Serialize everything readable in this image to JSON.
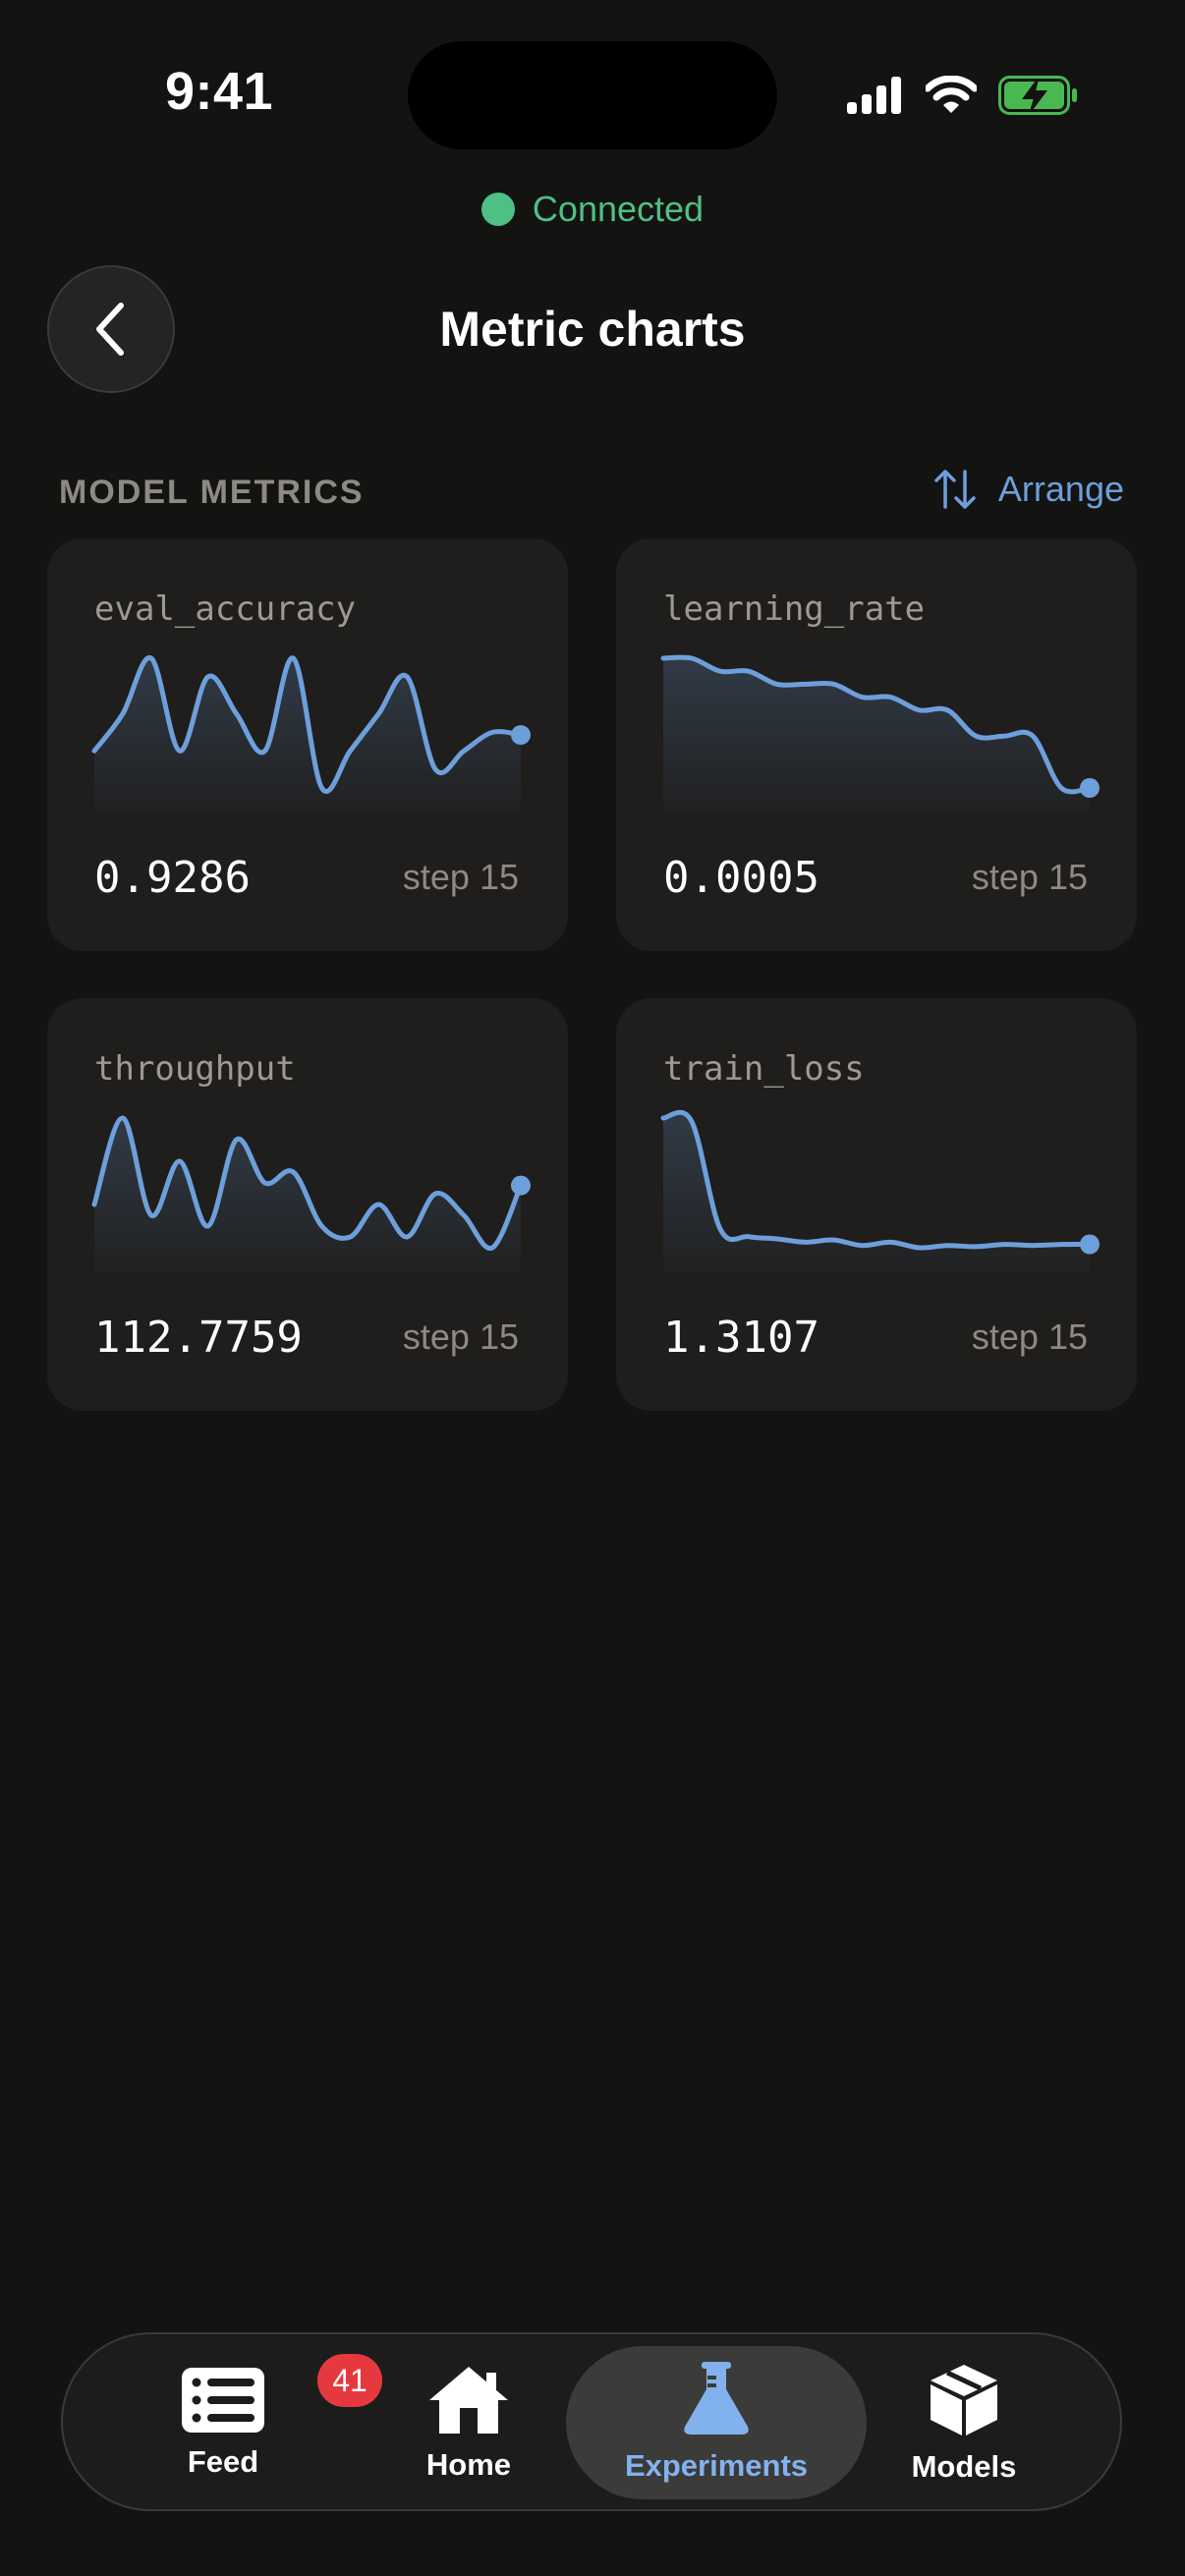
{
  "status_bar": {
    "time": "9:41"
  },
  "connection": {
    "text": "Connected",
    "color": "#4fc083"
  },
  "header": {
    "title": "Metric charts"
  },
  "section": {
    "label": "MODEL METRICS",
    "arrange_label": "Arrange"
  },
  "metrics": [
    {
      "name": "eval_accuracy",
      "value": "0.9286",
      "step": "step 15",
      "chart_data": {
        "type": "line",
        "x": [
          0,
          1,
          2,
          3,
          4,
          5,
          6,
          7,
          8,
          9,
          10,
          11,
          12,
          13,
          14,
          15
        ],
        "y": [
          0.92,
          0.94,
          0.97,
          0.92,
          0.96,
          0.94,
          0.92,
          0.97,
          0.9,
          0.92,
          0.94,
          0.96,
          0.91,
          0.92,
          0.93,
          0.9286
        ]
      }
    },
    {
      "name": "learning_rate",
      "value": "0.0005",
      "step": "step 15",
      "chart_data": {
        "type": "line",
        "x": [
          0,
          1,
          2,
          3,
          4,
          5,
          6,
          7,
          8,
          9,
          10,
          11,
          12,
          13,
          14,
          15
        ],
        "y": [
          0.0015,
          0.0015,
          0.0014,
          0.0014,
          0.0013,
          0.0013,
          0.0013,
          0.0012,
          0.0012,
          0.0011,
          0.0011,
          0.0009,
          0.0009,
          0.0009,
          0.0005,
          0.0005
        ]
      }
    },
    {
      "name": "throughput",
      "value": "112.7759",
      "step": "step 15",
      "chart_data": {
        "type": "line",
        "x": [
          0,
          1,
          2,
          3,
          4,
          5,
          6,
          7,
          8,
          9,
          10,
          11,
          12,
          13,
          14,
          15
        ],
        "y": [
          112.6,
          113.4,
          112.5,
          113.0,
          112.4,
          113.2,
          112.8,
          112.9,
          112.4,
          112.3,
          112.6,
          112.3,
          112.7,
          112.5,
          112.2,
          112.7759
        ]
      }
    },
    {
      "name": "train_loss",
      "value": "1.3107",
      "step": "step 15",
      "chart_data": {
        "type": "line",
        "x": [
          0,
          1,
          2,
          3,
          4,
          5,
          6,
          7,
          8,
          9,
          10,
          11,
          12,
          13,
          14,
          15
        ],
        "y": [
          2.45,
          2.42,
          1.45,
          1.38,
          1.36,
          1.33,
          1.35,
          1.3,
          1.33,
          1.28,
          1.3,
          1.29,
          1.31,
          1.3,
          1.31,
          1.3107
        ]
      }
    }
  ],
  "accent_color": "#6d9fdb",
  "tabs": [
    {
      "label": "Feed",
      "icon": "feed-icon",
      "badge": "41"
    },
    {
      "label": "Home",
      "icon": "home-icon"
    },
    {
      "label": "Experiments",
      "icon": "flask-icon",
      "active": true
    },
    {
      "label": "Models",
      "icon": "cube-icon"
    }
  ]
}
